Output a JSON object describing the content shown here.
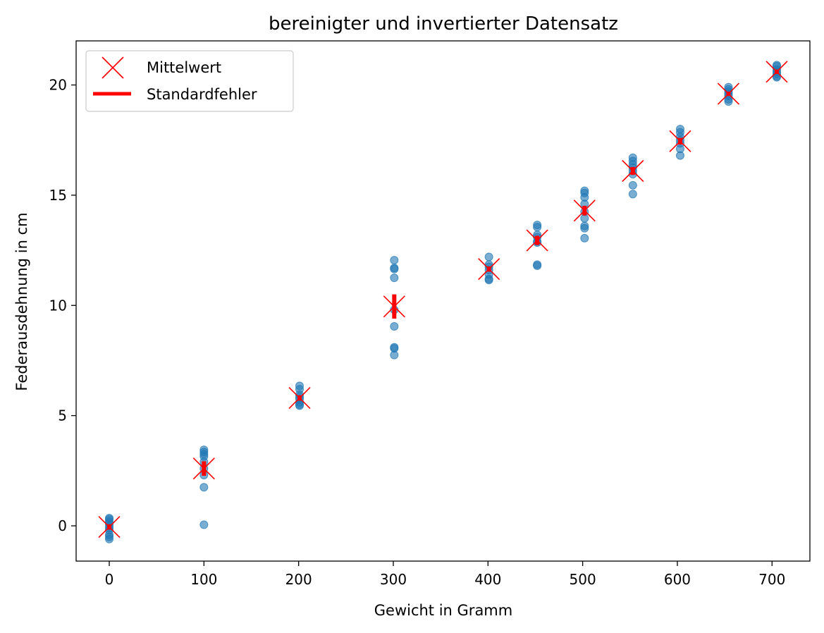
{
  "chart_data": {
    "type": "scatter",
    "title": "bereinigter und invertierter Datensatz",
    "xlabel": "Gewicht in Gramm",
    "ylabel": "Federausdehnung in cm",
    "xlim": [
      -35,
      740
    ],
    "ylim": [
      -1.6,
      22
    ],
    "xticks": [
      0,
      100,
      200,
      300,
      400,
      500,
      600,
      700
    ],
    "yticks": [
      0,
      5,
      10,
      15,
      20
    ],
    "grid": false,
    "legend": {
      "position": "top-left",
      "entries": [
        {
          "label": "Mittelwert",
          "marker": "x",
          "color": "#ff0000"
        },
        {
          "label": "Standardfehler",
          "marker": "line",
          "color": "#ff0000"
        }
      ]
    },
    "colors": {
      "measurements": "#1f77b4",
      "mean": "#ff0000",
      "error": "#ff0000"
    },
    "series": [
      {
        "kind": "measurements",
        "points": [
          {
            "x": 0,
            "y": 0.35
          },
          {
            "x": 0,
            "y": 0.3
          },
          {
            "x": 0,
            "y": 0.2
          },
          {
            "x": 0,
            "y": 0.1
          },
          {
            "x": 0,
            "y": 0.0
          },
          {
            "x": 0,
            "y": -0.1
          },
          {
            "x": 0,
            "y": -0.2
          },
          {
            "x": 0,
            "y": -0.4
          },
          {
            "x": 0,
            "y": -0.5
          },
          {
            "x": 0,
            "y": -0.6
          },
          {
            "x": 100,
            "y": 3.45
          },
          {
            "x": 100,
            "y": 3.35
          },
          {
            "x": 100,
            "y": 3.25
          },
          {
            "x": 100,
            "y": 3.15
          },
          {
            "x": 100,
            "y": 2.9
          },
          {
            "x": 100,
            "y": 2.6
          },
          {
            "x": 100,
            "y": 2.3
          },
          {
            "x": 100,
            "y": 1.75
          },
          {
            "x": 100,
            "y": 0.05
          },
          {
            "x": 201,
            "y": 6.35
          },
          {
            "x": 201,
            "y": 6.2
          },
          {
            "x": 201,
            "y": 5.95
          },
          {
            "x": 201,
            "y": 5.85
          },
          {
            "x": 201,
            "y": 5.75
          },
          {
            "x": 201,
            "y": 5.6
          },
          {
            "x": 201,
            "y": 5.5
          },
          {
            "x": 201,
            "y": 5.45
          },
          {
            "x": 301,
            "y": 12.05
          },
          {
            "x": 301,
            "y": 11.7
          },
          {
            "x": 301,
            "y": 11.65
          },
          {
            "x": 301,
            "y": 11.25
          },
          {
            "x": 301,
            "y": 9.8
          },
          {
            "x": 301,
            "y": 9.05
          },
          {
            "x": 301,
            "y": 8.1
          },
          {
            "x": 301,
            "y": 8.05
          },
          {
            "x": 301,
            "y": 7.75
          },
          {
            "x": 401,
            "y": 12.2
          },
          {
            "x": 401,
            "y": 11.85
          },
          {
            "x": 401,
            "y": 11.75
          },
          {
            "x": 401,
            "y": 11.6
          },
          {
            "x": 401,
            "y": 11.4
          },
          {
            "x": 401,
            "y": 11.2
          },
          {
            "x": 401,
            "y": 11.15
          },
          {
            "x": 452,
            "y": 13.65
          },
          {
            "x": 452,
            "y": 13.55
          },
          {
            "x": 452,
            "y": 13.2
          },
          {
            "x": 452,
            "y": 13.1
          },
          {
            "x": 452,
            "y": 12.9
          },
          {
            "x": 452,
            "y": 12.85
          },
          {
            "x": 452,
            "y": 11.85
          },
          {
            "x": 452,
            "y": 11.8
          },
          {
            "x": 502,
            "y": 15.2
          },
          {
            "x": 502,
            "y": 15.1
          },
          {
            "x": 502,
            "y": 14.9
          },
          {
            "x": 502,
            "y": 14.6
          },
          {
            "x": 502,
            "y": 14.25
          },
          {
            "x": 502,
            "y": 13.95
          },
          {
            "x": 502,
            "y": 13.6
          },
          {
            "x": 502,
            "y": 13.5
          },
          {
            "x": 502,
            "y": 13.05
          },
          {
            "x": 553,
            "y": 16.7
          },
          {
            "x": 553,
            "y": 16.55
          },
          {
            "x": 553,
            "y": 16.4
          },
          {
            "x": 553,
            "y": 16.25
          },
          {
            "x": 553,
            "y": 16.1
          },
          {
            "x": 553,
            "y": 15.95
          },
          {
            "x": 553,
            "y": 15.45
          },
          {
            "x": 553,
            "y": 15.05
          },
          {
            "x": 603,
            "y": 18.0
          },
          {
            "x": 603,
            "y": 17.85
          },
          {
            "x": 603,
            "y": 17.65
          },
          {
            "x": 603,
            "y": 17.5
          },
          {
            "x": 603,
            "y": 17.35
          },
          {
            "x": 603,
            "y": 17.1
          },
          {
            "x": 603,
            "y": 16.8
          },
          {
            "x": 654,
            "y": 19.9
          },
          {
            "x": 654,
            "y": 19.8
          },
          {
            "x": 654,
            "y": 19.7
          },
          {
            "x": 654,
            "y": 19.6
          },
          {
            "x": 654,
            "y": 19.5
          },
          {
            "x": 654,
            "y": 19.35
          },
          {
            "x": 654,
            "y": 19.25
          },
          {
            "x": 705,
            "y": 20.9
          },
          {
            "x": 705,
            "y": 20.85
          },
          {
            "x": 705,
            "y": 20.7
          },
          {
            "x": 705,
            "y": 20.6
          },
          {
            "x": 705,
            "y": 20.5
          },
          {
            "x": 705,
            "y": 20.4
          },
          {
            "x": 705,
            "y": 20.35
          }
        ]
      },
      {
        "name": "Mittelwert",
        "kind": "mean",
        "points": [
          {
            "x": 0,
            "y": -0.05,
            "err": 0.12
          },
          {
            "x": 100,
            "y": 2.6,
            "err": 0.33
          },
          {
            "x": 201,
            "y": 5.8,
            "err": 0.12
          },
          {
            "x": 301,
            "y": 9.95,
            "err": 0.55
          },
          {
            "x": 401,
            "y": 11.65,
            "err": 0.12
          },
          {
            "x": 452,
            "y": 12.95,
            "err": 0.21
          },
          {
            "x": 502,
            "y": 14.3,
            "err": 0.22
          },
          {
            "x": 553,
            "y": 16.1,
            "err": 0.18
          },
          {
            "x": 603,
            "y": 17.45,
            "err": 0.15
          },
          {
            "x": 654,
            "y": 19.6,
            "err": 0.1
          },
          {
            "x": 705,
            "y": 20.6,
            "err": 0.1
          }
        ]
      }
    ]
  }
}
